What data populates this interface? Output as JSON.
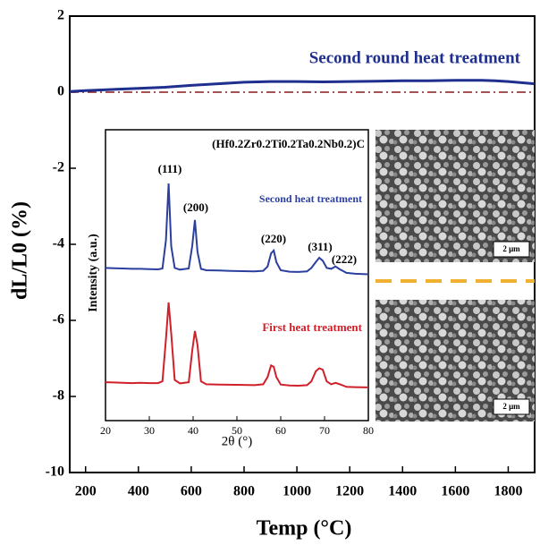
{
  "chart_data": [
    {
      "type": "line",
      "x_label": "Temp (°C)",
      "y_label": "dL/L0 (%)",
      "annotation": "Second round heat treatment",
      "xlim": [
        140,
        1900
      ],
      "xticks": [
        200,
        400,
        600,
        800,
        1000,
        1200,
        1400,
        1600,
        1800
      ],
      "ylim": [
        -10,
        2
      ],
      "yticks": [
        2,
        0,
        -2,
        -4,
        -6,
        -8,
        -10
      ],
      "reference_line": {
        "value": 0,
        "color": "#8b1a1a"
      },
      "series": [
        {
          "name": "Second round heat treatment",
          "color": "#1f2f8f",
          "x": [
            140,
            200,
            300,
            400,
            500,
            600,
            700,
            800,
            900,
            1000,
            1100,
            1200,
            1300,
            1400,
            1500,
            1600,
            1700,
            1750,
            1800,
            1850,
            1900
          ],
          "values": [
            0.02,
            0.04,
            0.07,
            0.1,
            0.13,
            0.18,
            0.22,
            0.26,
            0.28,
            0.28,
            0.27,
            0.28,
            0.29,
            0.3,
            0.3,
            0.31,
            0.31,
            0.3,
            0.28,
            0.25,
            0.22
          ]
        }
      ]
    },
    {
      "type": "line",
      "title": "(Hf0.2Zr0.2Ti0.2Ta0.2Nb0.2)C",
      "x_label": "2θ (°)",
      "y_label": "Intensity (a.u.)",
      "xlim": [
        20,
        80
      ],
      "xticks": [
        20,
        30,
        40,
        50,
        60,
        70,
        80
      ],
      "ylim": [
        0,
        100
      ],
      "annotations": [
        "(111)",
        "(200)",
        "(220)",
        "(311)",
        "(222)"
      ],
      "x": [
        20,
        22,
        24,
        26,
        28,
        30,
        32,
        33,
        33.8,
        34.4,
        35,
        35.8,
        37,
        39,
        39.8,
        40.4,
        41,
        41.8,
        43,
        46,
        50,
        54,
        56,
        57,
        57.8,
        58.4,
        59,
        60,
        62,
        64,
        66,
        67,
        68,
        68.8,
        69.6,
        70.5,
        71.5,
        72.5,
        73.5,
        75,
        77,
        80
      ],
      "series": [
        {
          "name": "Second heat treatment",
          "color": "#2b3f9e",
          "values": [
            52.5,
            52.4,
            52.3,
            52.2,
            52.2,
            52.1,
            52.0,
            52.3,
            62,
            81.5,
            60,
            52.5,
            51.9,
            52.3,
            60,
            69,
            58,
            52.2,
            51.7,
            51.6,
            51.4,
            51.3,
            51.5,
            53,
            57.5,
            58.5,
            54.5,
            51.7,
            51.2,
            51.1,
            51.3,
            52.5,
            54.5,
            56,
            55,
            52.5,
            52.2,
            53,
            52,
            50.8,
            50.5,
            50.3
          ]
        },
        {
          "name": "First heat treatment",
          "color": "#d0202a",
          "values": [
            13.2,
            13.1,
            13.0,
            12.9,
            13.0,
            12.9,
            12.9,
            13.5,
            28,
            40.6,
            30,
            14,
            12.8,
            13.2,
            24,
            30.8,
            26,
            13.5,
            12.5,
            12.4,
            12.3,
            12.2,
            12.5,
            15,
            19,
            18.5,
            15,
            12.4,
            12.1,
            12.0,
            12.2,
            13.5,
            17,
            18,
            17.5,
            13.5,
            12.5,
            13,
            12.5,
            11.6,
            11.5,
            11.4
          ]
        }
      ]
    }
  ],
  "sem_images": {
    "scale_bars": [
      "2 μm",
      "2 μm"
    ]
  }
}
